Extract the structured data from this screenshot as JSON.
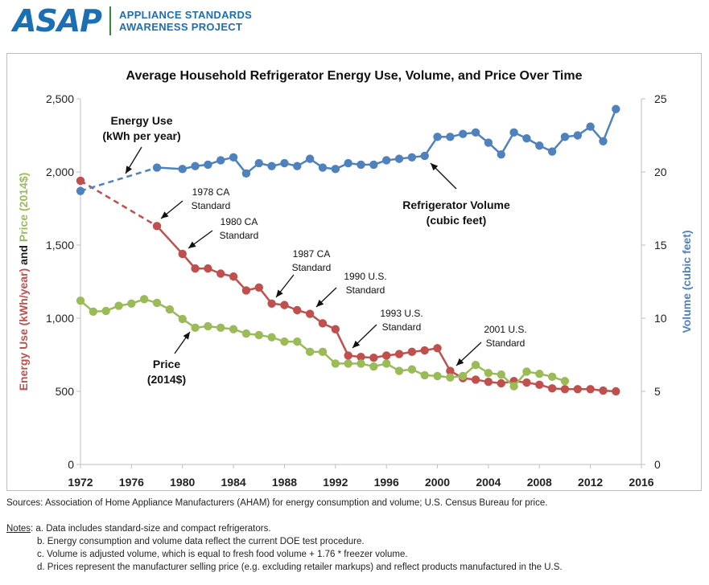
{
  "header": {
    "logo_text": "ASAP",
    "org_line1": "APPLIANCE STANDARDS",
    "org_line2": "AWARENESS PROJECT"
  },
  "chart_data": {
    "type": "line",
    "title": "Average Household Refrigerator Energy Use, Volume, and Price Over Time",
    "ylabel_left_parts": [
      "Energy Use (kWh/year)",
      " and ",
      "Price (2014$)"
    ],
    "ylabel_right": "Volume (cubic feet)",
    "xlim": [
      1972,
      2016
    ],
    "ylim_left": [
      0,
      2500
    ],
    "ylim_right": [
      0,
      25
    ],
    "x_ticks": [
      1972,
      1976,
      1980,
      1984,
      1988,
      1992,
      1996,
      2000,
      2004,
      2008,
      2012,
      2016
    ],
    "y_ticks_left": [
      "0",
      "500",
      "1,000",
      "1,500",
      "2,000",
      "2,500"
    ],
    "y_ticks_right": [
      "0",
      "5",
      "10",
      "15",
      "20",
      "25"
    ],
    "grid": false,
    "series": [
      {
        "name": "Energy Use (kWh per year)",
        "axis": "left",
        "color": "#c0504d",
        "dashed_until": 1978,
        "points": [
          [
            1972,
            1940
          ],
          [
            1978,
            1630
          ],
          [
            1980,
            1440
          ],
          [
            1981,
            1340
          ],
          [
            1982,
            1340
          ],
          [
            1983,
            1305
          ],
          [
            1984,
            1285
          ],
          [
            1985,
            1190
          ],
          [
            1986,
            1210
          ],
          [
            1987,
            1100
          ],
          [
            1988,
            1090
          ],
          [
            1989,
            1055
          ],
          [
            1990,
            1030
          ],
          [
            1991,
            965
          ],
          [
            1992,
            925
          ],
          [
            1993,
            745
          ],
          [
            1994,
            735
          ],
          [
            1995,
            730
          ],
          [
            1996,
            745
          ],
          [
            1997,
            755
          ],
          [
            1998,
            770
          ],
          [
            1999,
            780
          ],
          [
            2000,
            795
          ],
          [
            2001,
            640
          ],
          [
            2002,
            590
          ],
          [
            2003,
            580
          ],
          [
            2004,
            565
          ],
          [
            2005,
            555
          ],
          [
            2006,
            570
          ],
          [
            2007,
            560
          ],
          [
            2008,
            545
          ],
          [
            2009,
            520
          ],
          [
            2010,
            515
          ],
          [
            2011,
            515
          ],
          [
            2012,
            515
          ],
          [
            2013,
            505
          ],
          [
            2014,
            500
          ]
        ]
      },
      {
        "name": "Refrigerator Volume (cubic feet)",
        "axis": "right",
        "color": "#4f81bd",
        "dashed_until": 1978,
        "points": [
          [
            1972,
            18.7
          ],
          [
            1978,
            20.3
          ],
          [
            1980,
            20.2
          ],
          [
            1981,
            20.4
          ],
          [
            1982,
            20.5
          ],
          [
            1983,
            20.8
          ],
          [
            1984,
            21.0
          ],
          [
            1985,
            19.9
          ],
          [
            1986,
            20.6
          ],
          [
            1987,
            20.4
          ],
          [
            1988,
            20.6
          ],
          [
            1989,
            20.4
          ],
          [
            1990,
            20.9
          ],
          [
            1991,
            20.3
          ],
          [
            1992,
            20.2
          ],
          [
            1993,
            20.6
          ],
          [
            1994,
            20.5
          ],
          [
            1995,
            20.5
          ],
          [
            1996,
            20.8
          ],
          [
            1997,
            20.9
          ],
          [
            1998,
            21.0
          ],
          [
            1999,
            21.1
          ],
          [
            2000,
            22.4
          ],
          [
            2001,
            22.4
          ],
          [
            2002,
            22.6
          ],
          [
            2003,
            22.7
          ],
          [
            2004,
            22.0
          ],
          [
            2005,
            21.2
          ],
          [
            2006,
            22.7
          ],
          [
            2007,
            22.3
          ],
          [
            2008,
            21.8
          ],
          [
            2009,
            21.4
          ],
          [
            2010,
            22.4
          ],
          [
            2011,
            22.5
          ],
          [
            2012,
            23.1
          ],
          [
            2013,
            22.1
          ],
          [
            2014,
            24.3
          ]
        ]
      },
      {
        "name": "Price (2014$)",
        "axis": "left",
        "color": "#9bbb59",
        "dashed_until": null,
        "points": [
          [
            1972,
            1120
          ],
          [
            1973,
            1045
          ],
          [
            1974,
            1050
          ],
          [
            1975,
            1085
          ],
          [
            1976,
            1100
          ],
          [
            1977,
            1130
          ],
          [
            1978,
            1105
          ],
          [
            1979,
            1060
          ],
          [
            1980,
            995
          ],
          [
            1981,
            935
          ],
          [
            1982,
            945
          ],
          [
            1983,
            935
          ],
          [
            1984,
            925
          ],
          [
            1985,
            895
          ],
          [
            1986,
            885
          ],
          [
            1987,
            870
          ],
          [
            1988,
            840
          ],
          [
            1989,
            840
          ],
          [
            1990,
            770
          ],
          [
            1991,
            770
          ],
          [
            1992,
            690
          ],
          [
            1993,
            690
          ],
          [
            1994,
            690
          ],
          [
            1995,
            670
          ],
          [
            1996,
            690
          ],
          [
            1997,
            640
          ],
          [
            1998,
            650
          ],
          [
            1999,
            610
          ],
          [
            2000,
            605
          ],
          [
            2001,
            595
          ],
          [
            2002,
            605
          ],
          [
            2003,
            680
          ],
          [
            2004,
            625
          ],
          [
            2005,
            615
          ],
          [
            2006,
            535
          ],
          [
            2007,
            635
          ],
          [
            2008,
            620
          ],
          [
            2009,
            600
          ],
          [
            2010,
            570
          ]
        ]
      }
    ],
    "annotations": {
      "energy_label": [
        "Energy Use",
        "(kWh per year)"
      ],
      "volume_label": [
        "Refrigerator Volume",
        "(cubic feet)"
      ],
      "price_label": [
        "Price",
        "(2014$)"
      ],
      "standards": [
        {
          "year": 1978,
          "lines": [
            "1978 CA",
            "Standard"
          ]
        },
        {
          "year": 1980,
          "lines": [
            "1980 CA",
            "Standard"
          ]
        },
        {
          "year": 1987,
          "lines": [
            "1987 CA",
            "Standard"
          ]
        },
        {
          "year": 1990,
          "lines": [
            "1990 U.S.",
            "Standard"
          ]
        },
        {
          "year": 1993,
          "lines": [
            "1993 U.S.",
            "Standard"
          ]
        },
        {
          "year": 2001,
          "lines": [
            "2001 U.S.",
            "Standard"
          ]
        }
      ]
    }
  },
  "footer": {
    "sources": "Sources: Association of Home Appliance Manufacturers (AHAM) for energy consumption and volume; U.S. Census Bureau for price.",
    "notes_label": "Notes",
    "notes": [
      ": a. Data includes standard-size and compact refrigerators.",
      "b. Energy consumption and volume data reflect the current DOE test procedure.",
      "c. Volume is adjusted volume, which is equal to fresh food volume + 1.76 * freezer volume.",
      "d. Prices represent the manufacturer selling price (e.g. excluding retailer markups) and reflect products manufactured in the U.S."
    ]
  }
}
